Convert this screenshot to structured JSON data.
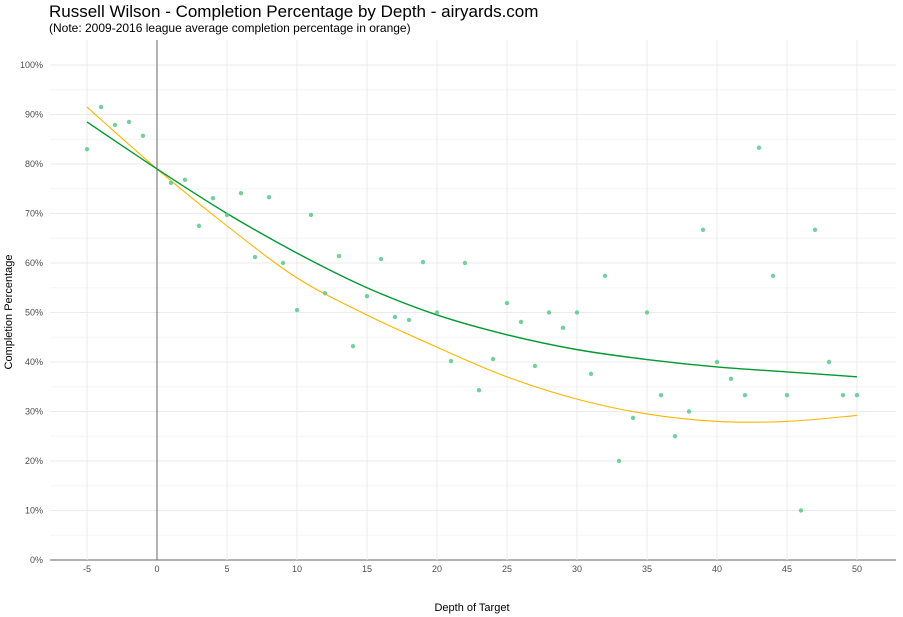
{
  "chart_data": {
    "type": "scatter",
    "title": "Russell Wilson - Completion Percentage by Depth - airyards.com",
    "subtitle": "(Note: 2009-2016 league average completion percentage in orange)",
    "xlabel": "Depth of Target",
    "ylabel": "Completion Percentage",
    "xlim": [
      -5,
      50
    ],
    "ylim": [
      0,
      100
    ],
    "xticks": [
      -5,
      0,
      5,
      10,
      15,
      20,
      25,
      30,
      35,
      40,
      45,
      50
    ],
    "yticks": [
      0,
      10,
      20,
      30,
      40,
      50,
      60,
      70,
      80,
      90,
      100
    ],
    "ytick_labels": [
      "0%",
      "10%",
      "20%",
      "30%",
      "40%",
      "50%",
      "60%",
      "70%",
      "80%",
      "90%",
      "100%"
    ],
    "grid": true,
    "colors": {
      "points": "#5cc98a",
      "wilson_fit": "#009933",
      "league_fit": "#ffb400",
      "zero_line": "#666666"
    },
    "points": {
      "x": [
        -5,
        -4,
        -3,
        -2,
        -1,
        1,
        2,
        3,
        4,
        5,
        6,
        7,
        8,
        9,
        10,
        11,
        12,
        13,
        14,
        15,
        16,
        17,
        18,
        19,
        20,
        21,
        22,
        23,
        24,
        25,
        26,
        27,
        28,
        29,
        30,
        31,
        32,
        33,
        34,
        35,
        36,
        37,
        38,
        39,
        40,
        41,
        42,
        43,
        44,
        45,
        46,
        47,
        48,
        49,
        50
      ],
      "y": [
        83.0,
        91.5,
        87.9,
        88.5,
        85.7,
        76.2,
        76.8,
        67.5,
        73.1,
        69.7,
        74.1,
        61.2,
        73.3,
        60.0,
        50.5,
        69.7,
        53.9,
        61.4,
        43.2,
        53.3,
        60.8,
        49.1,
        48.5,
        60.2,
        50.0,
        40.2,
        60.0,
        34.3,
        40.6,
        51.9,
        48.1,
        39.2,
        50.0,
        46.9,
        50.0,
        37.6,
        57.4,
        20.0,
        28.7,
        50.0,
        33.3,
        25.0,
        30.0,
        66.7,
        40.0,
        36.6,
        33.3,
        83.3,
        57.4,
        33.3,
        10.0,
        66.7,
        40.0,
        33.3,
        33.3
      ]
    },
    "series": [
      {
        "name": "Russell Wilson fit",
        "x": [
          -5,
          0,
          5,
          10,
          15,
          20,
          25,
          30,
          35,
          40,
          45,
          50
        ],
        "y": [
          88.5,
          79,
          70,
          62,
          55,
          49.5,
          45.5,
          42.5,
          40.5,
          39,
          38,
          37
        ]
      },
      {
        "name": "League average fit",
        "x": [
          -5,
          0,
          5,
          10,
          15,
          20,
          25,
          30,
          35,
          40,
          45,
          50
        ],
        "y": [
          91.5,
          79,
          67.5,
          57,
          49.5,
          43,
          37,
          32.5,
          29.5,
          28,
          28,
          29.2
        ]
      }
    ]
  }
}
